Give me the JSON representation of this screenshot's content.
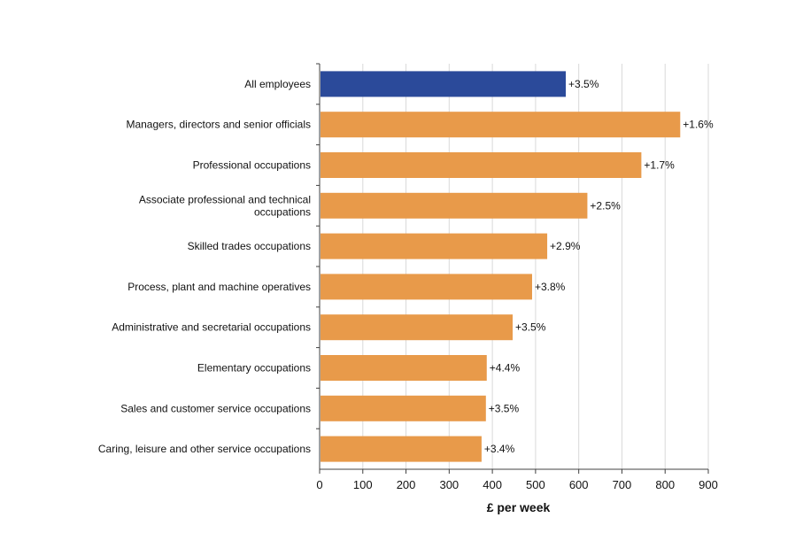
{
  "chart_data": {
    "type": "bar",
    "orientation": "horizontal",
    "title": "",
    "xlabel": "£ per week",
    "ylabel": "",
    "xlim": [
      0,
      900
    ],
    "xticks": [
      "0",
      "100",
      "200",
      "300",
      "400",
      "500",
      "600",
      "700",
      "800",
      "900"
    ],
    "grid": "vertical",
    "categories": [
      [
        "All employees"
      ],
      [
        "Managers, directors and senior officials"
      ],
      [
        "Professional occupations"
      ],
      [
        "Associate professional and technical",
        "occupations"
      ],
      [
        "Skilled trades occupations"
      ],
      [
        "Process, plant and machine operatives"
      ],
      [
        "Administrative and secretarial occupations"
      ],
      [
        "Elementary occupations"
      ],
      [
        "Sales and customer service occupations"
      ],
      [
        "Caring, leisure and other service occupations"
      ]
    ],
    "values": [
      570,
      835,
      745,
      620,
      527,
      492,
      447,
      387,
      385,
      375
    ],
    "data_labels": [
      "+3.5%",
      "+1.6%",
      "+1.7%",
      "+2.5%",
      "+2.9%",
      "+3.8%",
      "+3.5%",
      "+4.4%",
      "+3.5%",
      "+3.4%"
    ],
    "highlight_index": 0,
    "colors": {
      "highlight": "#2b4a9a",
      "bar": "#e89a4a",
      "grid": "#d9d9d9",
      "axis": "#404040"
    }
  }
}
